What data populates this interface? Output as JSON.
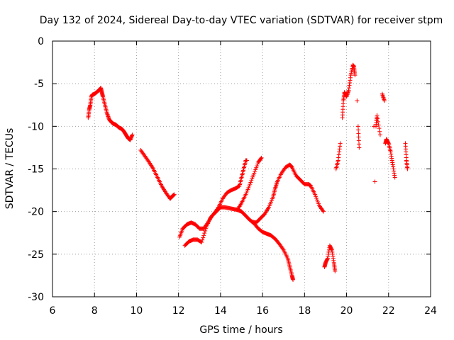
{
  "chart_data": {
    "type": "scatter",
    "title": "Day 132 of 2024, Sidereal Day-to-day VTEC variation (SDTVAR) for receiver stpm",
    "xlabel": "GPS time / hours",
    "ylabel": "SDTVAR / TECUs",
    "xlim": [
      6,
      24
    ],
    "ylim": [
      -30,
      0
    ],
    "xticks": [
      6,
      8,
      10,
      12,
      14,
      16,
      18,
      20,
      22,
      24
    ],
    "yticks": [
      0,
      -5,
      -10,
      -15,
      -20,
      -25,
      -30
    ],
    "grid": true,
    "marker": "+",
    "series": [
      {
        "name": "stpm",
        "color": "#ff0000",
        "points": [
          [
            7.7,
            -9.0
          ],
          [
            7.75,
            -8.0
          ],
          [
            7.8,
            -7.5
          ],
          [
            7.85,
            -6.5
          ],
          [
            7.9,
            -6.3
          ],
          [
            8.0,
            -6.2
          ],
          [
            8.1,
            -6.0
          ],
          [
            8.2,
            -5.8
          ],
          [
            8.3,
            -5.5
          ],
          [
            8.35,
            -6.0
          ],
          [
            8.4,
            -6.5
          ],
          [
            8.5,
            -7.5
          ],
          [
            8.6,
            -8.5
          ],
          [
            8.7,
            -9.2
          ],
          [
            8.8,
            -9.5
          ],
          [
            8.9,
            -9.7
          ],
          [
            9.0,
            -9.8
          ],
          [
            9.1,
            -10.0
          ],
          [
            9.2,
            -10.2
          ],
          [
            9.3,
            -10.3
          ],
          [
            9.4,
            -10.6
          ],
          [
            9.5,
            -11.0
          ],
          [
            9.6,
            -11.4
          ],
          [
            9.7,
            -11.6
          ],
          [
            9.8,
            -11.0
          ],
          [
            10.2,
            -12.8
          ],
          [
            10.4,
            -13.5
          ],
          [
            10.6,
            -14.2
          ],
          [
            10.8,
            -15.0
          ],
          [
            11.0,
            -16.0
          ],
          [
            11.2,
            -17.0
          ],
          [
            11.4,
            -17.8
          ],
          [
            11.6,
            -18.5
          ],
          [
            11.7,
            -18.2
          ],
          [
            11.8,
            -18.0
          ],
          [
            12.05,
            -23.0
          ],
          [
            12.2,
            -22.0
          ],
          [
            12.4,
            -21.5
          ],
          [
            12.6,
            -21.3
          ],
          [
            12.8,
            -21.5
          ],
          [
            13.0,
            -22.0
          ],
          [
            13.2,
            -22.0
          ],
          [
            13.4,
            -21.3
          ],
          [
            13.6,
            -20.5
          ],
          [
            13.8,
            -20.0
          ],
          [
            14.0,
            -19.5
          ],
          [
            14.2,
            -19.5
          ],
          [
            14.4,
            -19.6
          ],
          [
            14.6,
            -19.7
          ],
          [
            14.8,
            -19.8
          ],
          [
            15.0,
            -20.0
          ],
          [
            15.2,
            -20.5
          ],
          [
            15.4,
            -21.0
          ],
          [
            15.6,
            -21.4
          ],
          [
            15.8,
            -22.0
          ],
          [
            16.0,
            -22.4
          ],
          [
            16.2,
            -22.6
          ],
          [
            16.4,
            -22.8
          ],
          [
            16.6,
            -23.2
          ],
          [
            16.8,
            -23.8
          ],
          [
            17.0,
            -24.5
          ],
          [
            17.2,
            -25.5
          ],
          [
            17.3,
            -26.5
          ],
          [
            17.4,
            -27.5
          ],
          [
            17.45,
            -28.0
          ],
          [
            12.3,
            -24.0
          ],
          [
            12.5,
            -23.5
          ],
          [
            12.7,
            -23.3
          ],
          [
            12.9,
            -23.3
          ],
          [
            13.1,
            -23.6
          ],
          [
            13.3,
            -22.0
          ],
          [
            13.5,
            -20.8
          ],
          [
            13.7,
            -20.2
          ],
          [
            13.9,
            -19.5
          ],
          [
            14.1,
            -18.5
          ],
          [
            14.3,
            -17.8
          ],
          [
            14.5,
            -17.5
          ],
          [
            14.7,
            -17.3
          ],
          [
            14.9,
            -17.0
          ],
          [
            15.0,
            -16.0
          ],
          [
            15.1,
            -15.0
          ],
          [
            15.2,
            -14.0
          ],
          [
            15.25,
            -14.0
          ],
          [
            14.8,
            -19.8
          ],
          [
            15.0,
            -19.0
          ],
          [
            15.2,
            -18.0
          ],
          [
            15.4,
            -16.8
          ],
          [
            15.6,
            -15.5
          ],
          [
            15.8,
            -14.2
          ],
          [
            15.95,
            -13.7
          ],
          [
            15.5,
            -21.2
          ],
          [
            15.7,
            -21.3
          ],
          [
            15.9,
            -20.8
          ],
          [
            16.1,
            -20.3
          ],
          [
            16.3,
            -19.5
          ],
          [
            16.5,
            -18.3
          ],
          [
            16.6,
            -17.3
          ],
          [
            16.7,
            -16.5
          ],
          [
            16.9,
            -15.5
          ],
          [
            17.1,
            -14.8
          ],
          [
            17.3,
            -14.5
          ],
          [
            17.4,
            -14.8
          ],
          [
            17.6,
            -15.8
          ],
          [
            17.8,
            -16.3
          ],
          [
            18.0,
            -16.8
          ],
          [
            18.2,
            -16.8
          ],
          [
            18.3,
            -17.0
          ],
          [
            18.5,
            -18.0
          ],
          [
            18.7,
            -19.3
          ],
          [
            18.9,
            -20.0
          ],
          [
            18.95,
            -26.5
          ],
          [
            19.0,
            -26.0
          ],
          [
            19.1,
            -25.5
          ],
          [
            19.2,
            -24.0
          ],
          [
            19.3,
            -24.5
          ],
          [
            19.4,
            -26.0
          ],
          [
            19.45,
            -27.0
          ],
          [
            19.5,
            -15.0
          ],
          [
            19.6,
            -14.0
          ],
          [
            19.7,
            -12.0
          ],
          [
            19.8,
            -9.0
          ],
          [
            19.85,
            -7.0
          ],
          [
            19.9,
            -6.0
          ],
          [
            20.0,
            -6.5
          ],
          [
            20.1,
            -5.8
          ],
          [
            20.2,
            -4.0
          ],
          [
            20.3,
            -2.8
          ],
          [
            20.35,
            -3.0
          ],
          [
            20.4,
            -4.0
          ],
          [
            20.5,
            -7.0
          ],
          [
            20.55,
            -10.0
          ],
          [
            20.6,
            -12.5
          ],
          [
            21.3,
            -10.0
          ],
          [
            21.35,
            -16.5
          ],
          [
            21.4,
            -10.0
          ],
          [
            21.45,
            -8.7
          ],
          [
            21.6,
            -11.0
          ],
          [
            21.7,
            -6.2
          ],
          [
            21.8,
            -7.0
          ],
          [
            21.85,
            -12.0
          ],
          [
            21.9,
            -11.5
          ],
          [
            22.0,
            -12.0
          ],
          [
            22.1,
            -13.0
          ],
          [
            22.2,
            -14.5
          ],
          [
            22.3,
            -16.0
          ],
          [
            22.8,
            -12.0
          ],
          [
            22.85,
            -14.0
          ],
          [
            22.9,
            -15.0
          ]
        ]
      }
    ]
  }
}
